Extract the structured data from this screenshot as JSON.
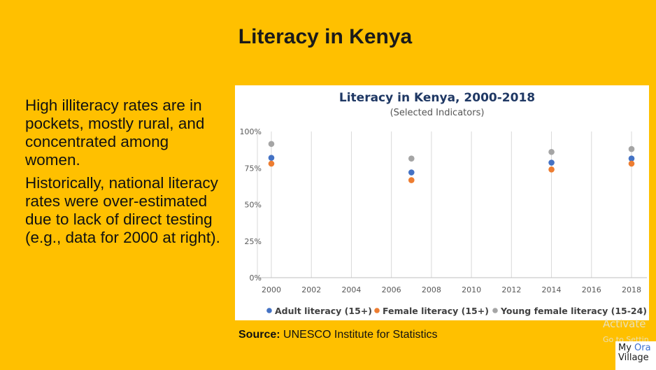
{
  "slide": {
    "title": "Literacy in Kenya",
    "paragraphs": [
      "High illiteracy rates are in pockets, mostly rural, and concentrated among women.",
      "Historically, national literacy rates were over-estimated due to lack of direct testing (e.g., data for 2000 at right)."
    ],
    "source_label": "Source:",
    "source_text": "UNESCO Institute for Statistics"
  },
  "watermark": {
    "line1": "Activate",
    "line2": "Go to Settin"
  },
  "logo": {
    "line1_a": "My ",
    "line1_b": "Ora",
    "line2": "Village"
  },
  "colors": {
    "background": "#FFC000",
    "title_navy": "#1F3864",
    "adult": "#4472C4",
    "female": "#ED7D31",
    "young_female": "#A5A5A5"
  },
  "chart_data": {
    "type": "scatter",
    "title": "Literacy in Kenya, 2000-2018",
    "subtitle": "(Selected Indicators)",
    "x_ticks": [
      2000,
      2002,
      2004,
      2006,
      2008,
      2010,
      2012,
      2014,
      2016,
      2018
    ],
    "y_ticks": [
      0,
      25,
      50,
      75,
      100
    ],
    "y_tick_labels": [
      "0%",
      "25%",
      "50%",
      "75%",
      "100%"
    ],
    "xlim": [
      2000,
      2018
    ],
    "ylim": [
      0,
      100
    ],
    "grid": "vertical",
    "legend_position": "bottom",
    "series": [
      {
        "name": "Adult literacy (15+)",
        "color": "#4472C4",
        "points": [
          [
            2000,
            82
          ],
          [
            2007,
            72
          ],
          [
            2014,
            78.7
          ],
          [
            2018,
            81.5
          ]
        ]
      },
      {
        "name": "Female literacy (15+)",
        "color": "#ED7D31",
        "points": [
          [
            2000,
            78
          ],
          [
            2007,
            66.7
          ],
          [
            2014,
            74
          ],
          [
            2018,
            78
          ]
        ]
      },
      {
        "name": "Young female literacy (15-24)",
        "color": "#A5A5A5",
        "points": [
          [
            2000,
            91.5
          ],
          [
            2007,
            81.5
          ],
          [
            2014,
            86
          ],
          [
            2018,
            88
          ]
        ]
      }
    ]
  }
}
